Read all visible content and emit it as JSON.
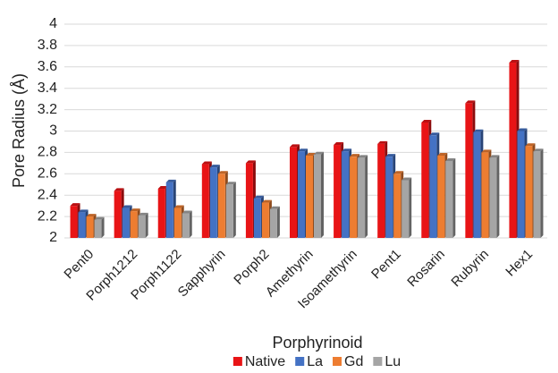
{
  "chart_data": {
    "type": "bar",
    "y_label": "Pore Radius (Å)",
    "x_label": "Porphyrinoid",
    "categories": [
      "Pent0",
      "Porph1212",
      "Porph1122",
      "Sapphyrin",
      "Porph2",
      "Amethyrin",
      "Isoamethyrin",
      "Pent1",
      "Rosarin",
      "Rubyrin",
      "Hex1"
    ],
    "series": [
      {
        "name": "Native",
        "color": "#e81416",
        "values": [
          2.3,
          2.44,
          2.46,
          2.69,
          2.7,
          2.85,
          2.87,
          2.88,
          3.08,
          3.26,
          3.64
        ]
      },
      {
        "name": "La",
        "color": "#4472c4",
        "values": [
          2.24,
          2.28,
          2.52,
          2.66,
          2.37,
          2.81,
          2.81,
          2.76,
          2.96,
          2.99,
          3.0
        ]
      },
      {
        "name": "Gd",
        "color": "#ed7d31",
        "values": [
          2.2,
          2.25,
          2.28,
          2.6,
          2.33,
          2.77,
          2.76,
          2.6,
          2.77,
          2.8,
          2.86
        ]
      },
      {
        "name": "Lu",
        "color": "#a5a5a5",
        "values": [
          2.17,
          2.21,
          2.23,
          2.5,
          2.27,
          2.78,
          2.75,
          2.54,
          2.72,
          2.75,
          2.81
        ]
      }
    ],
    "ylim": [
      2,
      4
    ],
    "yticks": [
      2,
      2.2,
      2.4,
      2.6,
      2.8,
      3,
      3.2,
      3.4,
      3.6,
      3.8,
      4
    ],
    "grid": true,
    "legend": "bottom"
  }
}
